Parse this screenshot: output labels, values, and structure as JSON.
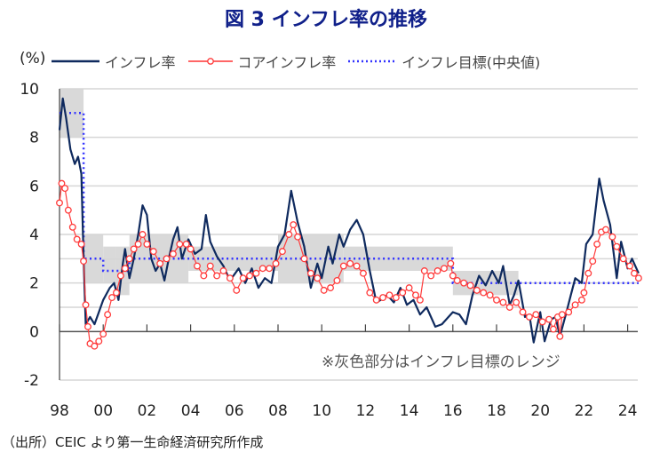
{
  "title": "図 3  インフレ率の推移",
  "unit_label": "(%)",
  "note": "※灰色部分はインフレ目標のレンジ",
  "source": "（出所）CEIC より第一生命経済研究所作成",
  "chart_data": {
    "type": "line",
    "title": "図 3  インフレ率の推移",
    "ylabel": "(%)",
    "ylim": [
      -2,
      10
    ],
    "xlim": [
      1998,
      2024.6
    ],
    "yticks": [
      {
        "value": 10,
        "label": "10",
        "color": "#222222"
      },
      {
        "value": 8,
        "label": "8",
        "color": "#222222"
      },
      {
        "value": 6,
        "label": "6",
        "color": "#222222"
      },
      {
        "value": 4,
        "label": "4",
        "color": "#222222"
      },
      {
        "value": 2,
        "label": "2",
        "color": "#222222"
      },
      {
        "value": 0,
        "label": "0",
        "color": "#222222"
      },
      {
        "value": -2,
        "label": "-2",
        "color": "#ff0000"
      }
    ],
    "gridlines": [
      10,
      8,
      6,
      4,
      3,
      2,
      1
    ],
    "xticks": [
      {
        "value": 1998,
        "label": "98"
      },
      {
        "value": 2000,
        "label": "00"
      },
      {
        "value": 2002,
        "label": "02"
      },
      {
        "value": 2004,
        "label": "04"
      },
      {
        "value": 2006,
        "label": "06"
      },
      {
        "value": 2008,
        "label": "08"
      },
      {
        "value": 2010,
        "label": "10"
      },
      {
        "value": 2012,
        "label": "12"
      },
      {
        "value": 2014,
        "label": "14"
      },
      {
        "value": 2016,
        "label": "16"
      },
      {
        "value": 2018,
        "label": "18"
      },
      {
        "value": 2020,
        "label": "20"
      },
      {
        "value": 2022,
        "label": "22"
      },
      {
        "value": 2024,
        "label": "24"
      }
    ],
    "legend_position": "top",
    "target_range": [
      {
        "from": 1998,
        "to": 1999.1,
        "low": 8,
        "high": 10
      },
      {
        "from": 1999.1,
        "to": 2000,
        "low": 2,
        "high": 4
      },
      {
        "from": 2000,
        "to": 2000.6,
        "low": 2,
        "high": 3.5
      },
      {
        "from": 2000.6,
        "to": 2001.2,
        "low": 1.5,
        "high": 3.5
      },
      {
        "from": 2001.2,
        "to": 2003.9,
        "low": 2,
        "high": 4
      },
      {
        "from": 2003.9,
        "to": 2008,
        "low": 2.5,
        "high": 3.5
      },
      {
        "from": 2008,
        "to": 2011,
        "low": 2,
        "high": 4
      },
      {
        "from": 2011,
        "to": 2016,
        "low": 2.5,
        "high": 3.5
      },
      {
        "from": 2016,
        "to": 2019,
        "low": 1.5,
        "high": 2.5
      }
    ],
    "series": [
      {
        "name": "インフレ率",
        "color": "#0f2a5e",
        "style": "solid",
        "x": [
          1998.0,
          1998.15,
          1998.3,
          1998.5,
          1998.7,
          1998.85,
          1999.0,
          1999.1,
          1999.2,
          1999.4,
          1999.6,
          1999.8,
          2000.0,
          2000.3,
          2000.5,
          2000.7,
          2000.9,
          2001.0,
          2001.2,
          2001.4,
          2001.6,
          2001.8,
          2002.0,
          2002.2,
          2002.4,
          2002.6,
          2002.8,
          2003.0,
          2003.2,
          2003.4,
          2003.6,
          2003.9,
          2004.2,
          2004.5,
          2004.7,
          2004.9,
          2005.2,
          2005.5,
          2005.8,
          2006.2,
          2006.5,
          2006.8,
          2007.1,
          2007.4,
          2007.7,
          2008.0,
          2008.3,
          2008.6,
          2008.9,
          2009.2,
          2009.5,
          2009.8,
          2010.0,
          2010.3,
          2010.5,
          2010.8,
          2011.0,
          2011.3,
          2011.6,
          2011.9,
          2012.2,
          2012.5,
          2012.7,
          2013.0,
          2013.3,
          2013.6,
          2013.9,
          2014.2,
          2014.5,
          2014.8,
          2015.2,
          2015.5,
          2015.8,
          2016.0,
          2016.3,
          2016.6,
          2016.9,
          2017.2,
          2017.5,
          2017.8,
          2018.1,
          2018.3,
          2018.6,
          2018.8,
          2019.0,
          2019.3,
          2019.5,
          2019.7,
          2020.0,
          2020.2,
          2020.5,
          2020.7,
          2020.9,
          2021.2,
          2021.4,
          2021.6,
          2021.9,
          2022.1,
          2022.4,
          2022.7,
          2022.9,
          2023.2,
          2023.5,
          2023.7,
          2024.0,
          2024.2,
          2024.5
        ],
        "values": [
          8.3,
          9.6,
          8.8,
          7.5,
          6.9,
          7.2,
          6.5,
          3.0,
          0.3,
          0.6,
          0.3,
          0.8,
          1.3,
          1.8,
          2.0,
          1.3,
          2.8,
          3.4,
          2.2,
          3.0,
          4.0,
          5.2,
          4.8,
          3.0,
          2.5,
          2.8,
          2.1,
          3.0,
          3.8,
          4.3,
          3.0,
          3.8,
          3.2,
          3.4,
          4.8,
          3.7,
          3.1,
          2.7,
          2.1,
          2.6,
          2.0,
          2.6,
          1.8,
          2.2,
          2.0,
          3.5,
          4.0,
          5.8,
          4.5,
          3.5,
          1.8,
          2.8,
          2.2,
          3.5,
          2.8,
          4.0,
          3.5,
          4.2,
          4.6,
          4.0,
          2.5,
          1.2,
          1.3,
          1.5,
          1.2,
          1.8,
          1.1,
          1.3,
          0.7,
          1.0,
          0.2,
          0.3,
          0.6,
          0.8,
          0.7,
          0.3,
          1.5,
          2.3,
          1.9,
          2.5,
          2.0,
          2.7,
          1.1,
          1.5,
          2.1,
          0.6,
          0.7,
          -0.45,
          0.8,
          -0.4,
          0.5,
          0.6,
          -0.2,
          0.8,
          1.5,
          2.2,
          2.0,
          3.6,
          4.0,
          6.3,
          5.4,
          4.4,
          2.2,
          3.7,
          2.6,
          3.0,
          2.4
        ]
      },
      {
        "name": "コアインフレ率",
        "color": "#ff3b3b",
        "style": "line-marker",
        "x": [
          1998.0,
          1998.1,
          1998.25,
          1998.4,
          1998.6,
          1998.8,
          1999.0,
          1999.1,
          1999.2,
          1999.3,
          1999.4,
          1999.6,
          1999.8,
          2000.0,
          2000.2,
          2000.4,
          2000.6,
          2000.8,
          2001.0,
          2001.2,
          2001.4,
          2001.6,
          2001.8,
          2002.0,
          2002.3,
          2002.6,
          2002.9,
          2003.2,
          2003.5,
          2003.8,
          2004.0,
          2004.3,
          2004.6,
          2004.9,
          2005.2,
          2005.5,
          2005.8,
          2006.1,
          2006.4,
          2006.7,
          2007.0,
          2007.3,
          2007.6,
          2007.9,
          2008.2,
          2008.5,
          2008.7,
          2008.9,
          2009.2,
          2009.5,
          2009.8,
          2010.1,
          2010.4,
          2010.7,
          2011.0,
          2011.3,
          2011.6,
          2011.9,
          2012.2,
          2012.5,
          2012.8,
          2013.1,
          2013.4,
          2013.7,
          2014.0,
          2014.3,
          2014.5,
          2014.7,
          2015.0,
          2015.3,
          2015.6,
          2015.9,
          2016.0,
          2016.2,
          2016.5,
          2016.8,
          2017.1,
          2017.4,
          2017.7,
          2018.0,
          2018.3,
          2018.6,
          2018.9,
          2019.2,
          2019.5,
          2019.8,
          2020.1,
          2020.4,
          2020.6,
          2020.8,
          2020.9,
          2021.0,
          2021.3,
          2021.6,
          2021.9,
          2022.0,
          2022.2,
          2022.4,
          2022.6,
          2022.8,
          2023.0,
          2023.3,
          2023.5,
          2023.8,
          2024.1,
          2024.3,
          2024.5
        ],
        "values": [
          5.3,
          6.1,
          5.9,
          5.0,
          4.3,
          3.8,
          3.6,
          2.9,
          1.1,
          0.2,
          -0.5,
          -0.6,
          -0.4,
          -0.1,
          0.7,
          1.4,
          1.6,
          2.3,
          2.6,
          3.0,
          3.4,
          3.6,
          4.0,
          3.6,
          3.3,
          2.8,
          3.0,
          3.2,
          3.6,
          3.6,
          3.4,
          2.7,
          2.3,
          2.7,
          2.3,
          2.5,
          2.2,
          1.7,
          2.2,
          2.3,
          2.4,
          2.6,
          2.6,
          2.8,
          3.3,
          4.0,
          4.4,
          3.9,
          3.0,
          2.4,
          2.2,
          1.7,
          1.8,
          2.1,
          2.7,
          2.8,
          2.7,
          2.4,
          1.6,
          1.3,
          1.4,
          1.5,
          1.4,
          1.6,
          1.8,
          1.5,
          1.3,
          2.5,
          2.3,
          2.5,
          2.6,
          2.8,
          2.3,
          2.1,
          2.0,
          1.9,
          1.7,
          1.6,
          1.5,
          1.3,
          1.2,
          1.0,
          1.2,
          0.8,
          0.6,
          0.7,
          0.4,
          0.5,
          0.1,
          0.6,
          -0.2,
          0.7,
          0.8,
          1.1,
          1.3,
          1.6,
          2.4,
          2.9,
          3.6,
          4.1,
          4.2,
          3.9,
          3.5,
          3.0,
          2.7,
          2.4,
          2.2
        ]
      },
      {
        "name": "インフレ目標(中央値)",
        "color": "#3333ff",
        "style": "dotted",
        "x": [
          1998.0,
          1999.1,
          1999.1,
          2000.0,
          2000.0,
          2001.2,
          2001.2,
          2016.0,
          2016.0,
          2024.5
        ],
        "values": [
          9,
          9,
          3,
          3,
          2.5,
          2.5,
          3,
          3,
          2,
          2
        ]
      }
    ]
  }
}
